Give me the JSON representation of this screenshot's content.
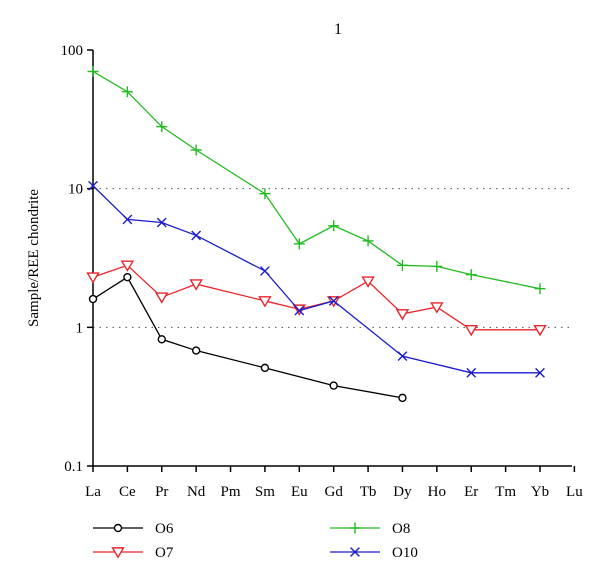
{
  "chart_data": {
    "type": "line",
    "title": "1",
    "ylabel": "Sample/REE chondrite",
    "xlabel": "",
    "yscale": "log",
    "ylim": [
      0.1,
      100
    ],
    "yticks": [
      "0.1",
      "1",
      "10",
      "100"
    ],
    "grid": "dotted horizontal at 1 and 10",
    "categories": [
      "La",
      "Ce",
      "Pr",
      "Nd",
      "Pm",
      "Sm",
      "Eu",
      "Gd",
      "Tb",
      "Dy",
      "Ho",
      "Er",
      "Tm",
      "Yb",
      "Lu"
    ],
    "legend_placement": "bottom",
    "series": [
      {
        "name": "O6",
        "marker": "circle",
        "color": "#000000",
        "values": [
          1.6,
          2.3,
          0.82,
          0.68,
          null,
          0.51,
          null,
          0.38,
          null,
          0.31,
          null,
          null,
          null,
          null,
          null
        ]
      },
      {
        "name": "O7",
        "marker": "triangle-down",
        "color": "#e8262b",
        "values": [
          2.3,
          2.8,
          1.65,
          2.05,
          null,
          1.55,
          1.35,
          1.55,
          2.15,
          1.25,
          1.4,
          0.96,
          null,
          0.96,
          null
        ]
      },
      {
        "name": "O8",
        "marker": "plus",
        "color": "#22bb22",
        "values": [
          70,
          50,
          28,
          19,
          null,
          9.2,
          4.0,
          5.4,
          4.2,
          2.8,
          2.75,
          2.4,
          null,
          1.9,
          null
        ]
      },
      {
        "name": "O10",
        "marker": "x",
        "color": "#1c1ccc",
        "values": [
          10.5,
          6.0,
          5.7,
          4.6,
          null,
          2.55,
          1.32,
          1.55,
          null,
          0.62,
          null,
          0.47,
          null,
          0.47,
          null
        ]
      }
    ]
  }
}
